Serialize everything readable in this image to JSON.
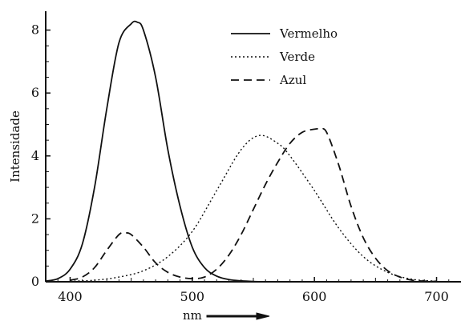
{
  "chart_data": {
    "type": "line",
    "title": "",
    "xlabel": "nm",
    "ylabel": "Intensidade",
    "xlim": [
      380,
      720
    ],
    "ylim": [
      0,
      8.6
    ],
    "xticks": [
      400,
      500,
      600,
      700
    ],
    "yticks": [
      0,
      2,
      4,
      6,
      8
    ],
    "grid": false,
    "legend_position": "top-right",
    "series": [
      {
        "name": "Vermelho",
        "style": "solid",
        "x": [
          380,
          390,
          400,
          410,
          420,
          430,
          440,
          450,
          455,
          460,
          470,
          480,
          490,
          500,
          510,
          520,
          530,
          540,
          550,
          560
        ],
        "values": [
          0.02,
          0.1,
          0.4,
          1.2,
          3.0,
          5.5,
          7.6,
          8.2,
          8.25,
          8.0,
          6.5,
          4.2,
          2.4,
          1.1,
          0.45,
          0.18,
          0.07,
          0.03,
          0.01,
          0.0
        ]
      },
      {
        "name": "Verde",
        "style": "dotted",
        "x": [
          400,
          420,
          440,
          460,
          480,
          500,
          520,
          540,
          555,
          570,
          580,
          600,
          620,
          640,
          660,
          680,
          700
        ],
        "values": [
          0.02,
          0.05,
          0.15,
          0.35,
          0.8,
          1.6,
          2.9,
          4.2,
          4.65,
          4.4,
          4.0,
          2.9,
          1.7,
          0.8,
          0.3,
          0.08,
          0.02
        ]
      },
      {
        "name": "Azul",
        "style": "dashed",
        "x": [
          400,
          410,
          420,
          430,
          440,
          445,
          450,
          460,
          470,
          480,
          490,
          500,
          510,
          520,
          530,
          540,
          550,
          560,
          570,
          580,
          590,
          600,
          605,
          610,
          620,
          630,
          640,
          650,
          660,
          670,
          680,
          690,
          700
        ],
        "values": [
          0.05,
          0.15,
          0.45,
          1.0,
          1.5,
          1.55,
          1.5,
          1.1,
          0.6,
          0.3,
          0.15,
          0.1,
          0.15,
          0.4,
          0.85,
          1.5,
          2.3,
          3.1,
          3.8,
          4.4,
          4.75,
          4.85,
          4.85,
          4.75,
          3.7,
          2.4,
          1.4,
          0.75,
          0.35,
          0.15,
          0.05,
          0.02,
          0.01
        ]
      }
    ],
    "colors": {
      "line": "#111111",
      "axis": "#111111",
      "background": "#ffffff"
    },
    "x_axis_decoration": "right-arrow-after-xlabel"
  }
}
